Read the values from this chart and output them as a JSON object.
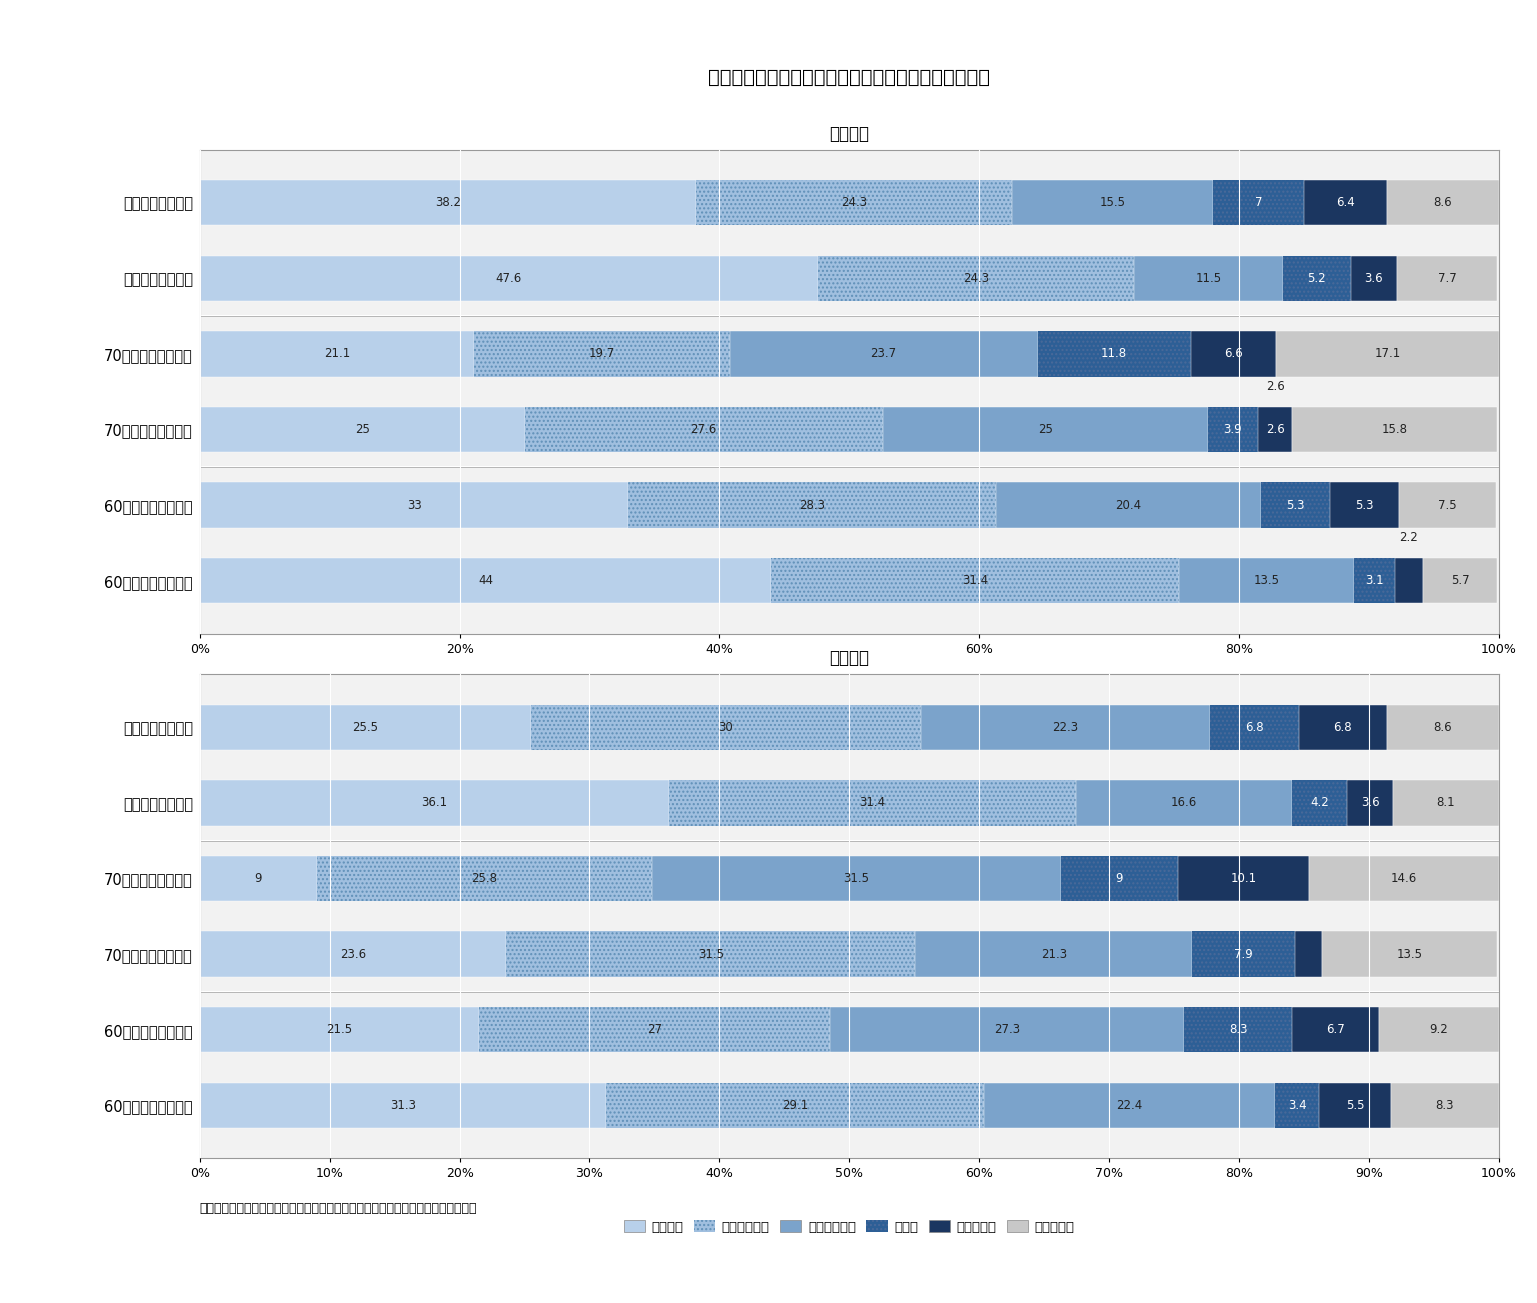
{
  "title": "図表１　コロナ前と比べた高齢者等の外出頻度の変化",
  "male_subtitle": "＜男性＞",
  "female_subtitle": "＜女性＞",
  "footer": "（資料）「第１０回　新型コロナによる暮らしの変化に関する調査」より筆者作成",
  "categories_male": [
    "全体（コロナ禍）",
    "全体（コロナ前）",
    "70歳代（コロナ禍）",
    "70歳代（コロナ前）",
    "60歳代（コロナ禍）",
    "60歳代（コロナ前）"
  ],
  "categories_female": [
    "全体（コロナ禍）",
    "全体（コロナ前）",
    "70歳代（コロナ禍）",
    "70歳代（コロナ前）",
    "60歳代（コロナ禍）",
    "60歳代（コロナ前）"
  ],
  "legend_labels": [
    "ほぼ毎日",
    "週に４、５日",
    "週に２、３日",
    "週１日",
    "週１日未満",
    "該当しない"
  ],
  "colors": [
    "#b8d0ea",
    "#a0bfdf",
    "#7ba3cb",
    "#2d5f96",
    "#1b3660",
    "#c8c8c8"
  ],
  "male_data": [
    [
      38.2,
      24.3,
      15.5,
      7.0,
      6.4,
      8.6
    ],
    [
      47.6,
      24.3,
      11.5,
      5.2,
      3.6,
      7.7
    ],
    [
      21.1,
      19.7,
      23.7,
      11.8,
      6.6,
      17.1
    ],
    [
      25.0,
      27.6,
      25.0,
      3.9,
      2.6,
      15.8
    ],
    [
      33.0,
      28.3,
      20.4,
      5.3,
      5.3,
      7.5
    ],
    [
      44.0,
      31.4,
      13.5,
      3.1,
      2.2,
      5.7
    ]
  ],
  "female_data": [
    [
      25.5,
      30.0,
      22.3,
      6.8,
      6.8,
      8.6
    ],
    [
      36.1,
      31.4,
      16.6,
      4.2,
      3.6,
      8.1
    ],
    [
      9.0,
      25.8,
      31.5,
      9.0,
      10.1,
      14.6
    ],
    [
      23.6,
      31.5,
      21.3,
      7.9,
      2.1,
      13.5
    ],
    [
      21.5,
      27.0,
      27.3,
      8.3,
      6.7,
      9.2
    ],
    [
      31.3,
      29.1,
      22.4,
      3.4,
      5.5,
      8.3
    ]
  ],
  "male_outside_labels": {
    "3": {
      "4": "2.6",
      "5": "2.2"
    }
  },
  "bar_height": 0.6,
  "background_color": "#ffffff",
  "plot_bg_color": "#f2f2f2",
  "border_color": "#999999"
}
